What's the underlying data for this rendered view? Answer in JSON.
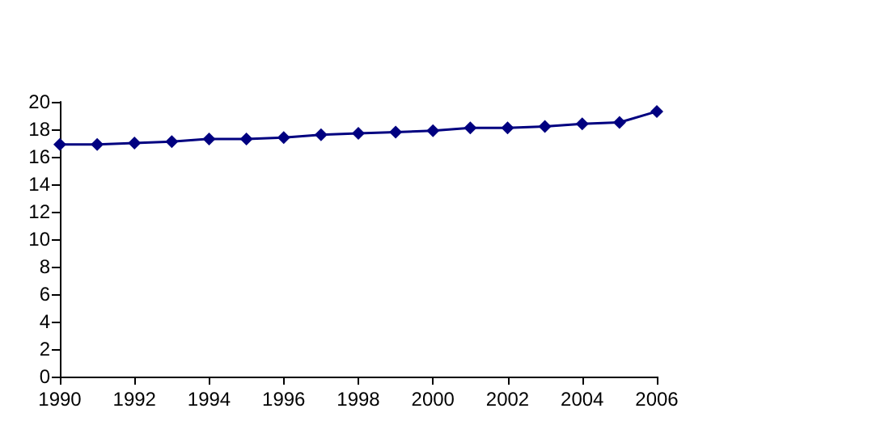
{
  "chart_data": {
    "type": "line",
    "x": [
      1990,
      1991,
      1992,
      1993,
      1994,
      1995,
      1996,
      1997,
      1998,
      1999,
      2000,
      2001,
      2002,
      2003,
      2004,
      2005,
      2006
    ],
    "series": [
      {
        "color": "#000080",
        "values": [
          16.9,
          16.9,
          17.0,
          17.1,
          17.3,
          17.3,
          17.4,
          17.6,
          17.7,
          17.8,
          17.9,
          18.1,
          18.1,
          18.2,
          18.4,
          18.5,
          19.3
        ]
      }
    ],
    "xlim": [
      1990,
      2006
    ],
    "xticks": [
      1990,
      1992,
      1994,
      1996,
      1998,
      2000,
      2002,
      2004,
      2006
    ],
    "ylim": [
      0,
      20
    ],
    "yticks": [
      0,
      2,
      4,
      6,
      8,
      10,
      12,
      14,
      16,
      18,
      20
    ],
    "grid": false,
    "marker": "diamond",
    "line_style": "solid"
  }
}
